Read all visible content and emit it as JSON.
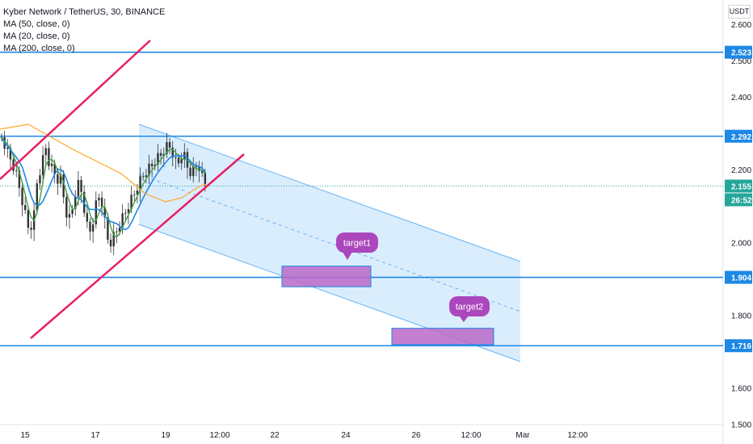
{
  "header": {
    "symbol_line": "Kyber Network / TetherUS, 30, BINANCE",
    "indicators": [
      "MA (50, close, 0)",
      "MA (20, close, 0)",
      "MA (200, close, 0)"
    ],
    "currency_button": "USDT"
  },
  "chart_data": {
    "type": "line",
    "y_axis": {
      "ticks": [
        "2.600",
        "2.500",
        "2.400",
        "2.200",
        "2.000",
        "1.800",
        "1.600",
        "1.500"
      ],
      "range": [
        1.47,
        2.68
      ]
    },
    "x_axis": {
      "ticks": [
        "15",
        "17",
        "19",
        "12:00",
        "22",
        "24",
        "26",
        "12:00",
        "Mar",
        "12:00"
      ]
    },
    "horizontal_levels": [
      {
        "value": 2.523,
        "label": "2.523"
      },
      {
        "value": 2.292,
        "label": "2.292"
      },
      {
        "value": 1.904,
        "label": "1.904"
      },
      {
        "value": 1.716,
        "label": "1.716"
      }
    ],
    "current_price": {
      "value": 2.155,
      "label": "2.155",
      "countdown": "26:52"
    },
    "annotations": [
      {
        "text": "target1",
        "zone": [
          1.878,
          1.935
        ]
      },
      {
        "text": "target2",
        "zone": [
          1.719,
          1.764
        ]
      }
    ],
    "colors": {
      "level_line": "#1e88e5",
      "trend_line": "#e91e63",
      "channel_fill": "#bbdefb",
      "channel_line": "#64b5f6",
      "target_box": "#ba68c8",
      "callout": "#ab47bc",
      "ma50": "#1e88e5",
      "ma20": "#43a047",
      "ma200": "#ffa726",
      "current_price_badge": "#26a69a",
      "candles": "#333333"
    }
  }
}
